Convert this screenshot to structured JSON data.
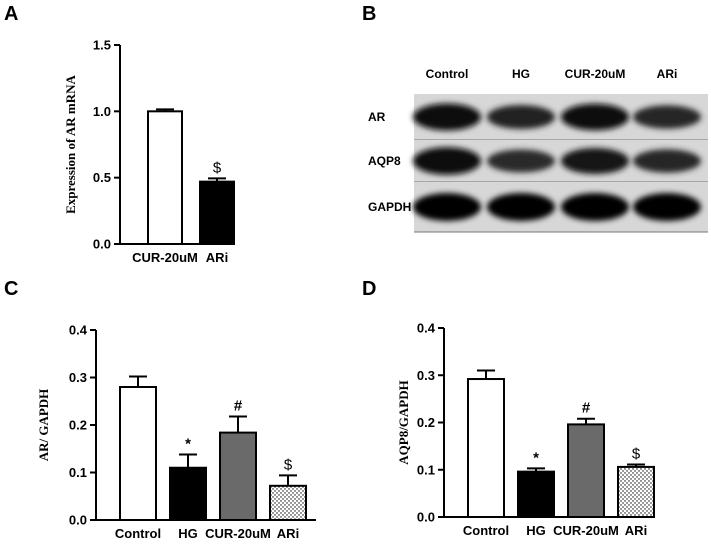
{
  "panel_labels": {
    "a": "A",
    "b": "B",
    "c": "C",
    "d": "D"
  },
  "colors": {
    "white": "#ffffff",
    "black": "#000000",
    "gray": "#6a6a6a",
    "dotted": "#ffffff"
  },
  "chart_data": [
    {
      "id": "A",
      "type": "bar",
      "ylabel": "Expression of AR mRNA",
      "categories": [
        "CUR-20uM",
        "ARi"
      ],
      "values": [
        1.0,
        0.47
      ],
      "errors": [
        0.015,
        0.025
      ],
      "fills": [
        "white",
        "black"
      ],
      "annotations": [
        "",
        "$"
      ],
      "ylim": [
        0,
        1.5
      ],
      "yticks": [
        "0.0",
        "0.5",
        "1.0",
        "1.5"
      ]
    },
    {
      "id": "C",
      "type": "bar",
      "ylabel": "AR/ GAPDH",
      "categories": [
        "Control",
        "HG",
        "CUR-20uM",
        "ARi"
      ],
      "values": [
        0.28,
        0.11,
        0.184,
        0.072
      ],
      "errors": [
        0.022,
        0.028,
        0.034,
        0.022
      ],
      "fills": [
        "white",
        "black",
        "gray",
        "dotted"
      ],
      "annotations": [
        "",
        "*",
        "#",
        "$"
      ],
      "ylim": [
        0,
        0.4
      ],
      "yticks": [
        "0.0",
        "0.1",
        "0.2",
        "0.3",
        "0.4"
      ]
    },
    {
      "id": "D",
      "type": "bar",
      "ylabel": "AQP8/GAPDH",
      "categories": [
        "Control",
        "HG",
        "CUR-20uM",
        "ARi"
      ],
      "values": [
        0.292,
        0.096,
        0.196,
        0.106
      ],
      "errors": [
        0.018,
        0.007,
        0.012,
        0.005
      ],
      "fills": [
        "white",
        "black",
        "gray",
        "dotted"
      ],
      "annotations": [
        "",
        "*",
        "#",
        "$"
      ],
      "ylim": [
        0,
        0.4
      ],
      "yticks": [
        "0.0",
        "0.1",
        "0.2",
        "0.3",
        "0.4"
      ]
    }
  ],
  "western_blot": {
    "lanes": [
      "Control",
      "HG",
      "CUR-20uM",
      "ARi"
    ],
    "rows": [
      {
        "label": "AR",
        "intensity": [
          0.9,
          0.6,
          0.85,
          0.55
        ]
      },
      {
        "label": "AQP8",
        "intensity": [
          0.95,
          0.5,
          0.8,
          0.55
        ]
      },
      {
        "label": "GAPDH",
        "intensity": [
          1.0,
          1.0,
          1.0,
          1.0
        ]
      }
    ]
  }
}
